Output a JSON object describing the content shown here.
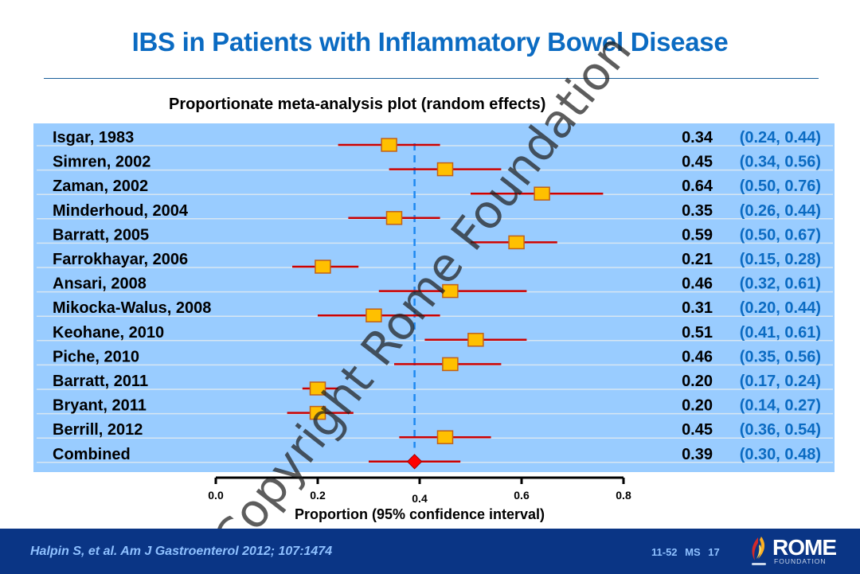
{
  "slide": {
    "title": "IBS in Patients with Inflammatory Bowel Disease",
    "watermark": "Copyright Rome Foundation",
    "footer": {
      "citation": "Halpin S, et al. Am J Gastroenterol 2012; 107:1474",
      "slide_code": "11-52 MS 17",
      "logo_name": "ROME",
      "logo_sub": "FOUNDATION"
    }
  },
  "chart_data": {
    "type": "forest",
    "title": "Proportionate meta-analysis plot (random effects)",
    "xlabel": "Proportion (95% confidence interval)",
    "xlim": [
      0.0,
      0.8
    ],
    "xticks": [
      "0.0",
      "0.2",
      "0.4",
      "0.6",
      "0.8"
    ],
    "xtick_values": [
      0.0,
      0.2,
      0.4,
      0.6,
      0.8
    ],
    "reference_line": 0.39,
    "studies": [
      {
        "label": "Isgar, 1983",
        "estimate": 0.34,
        "lower": 0.24,
        "upper": 0.44,
        "estimate_text": "0.34",
        "ci_text": "(0.24, 0.44)"
      },
      {
        "label": "Simren, 2002",
        "estimate": 0.45,
        "lower": 0.34,
        "upper": 0.56,
        "estimate_text": "0.45",
        "ci_text": "(0.34, 0.56)"
      },
      {
        "label": "Zaman, 2002",
        "estimate": 0.64,
        "lower": 0.5,
        "upper": 0.76,
        "estimate_text": "0.64",
        "ci_text": "(0.50, 0.76)"
      },
      {
        "label": "Minderhoud, 2004",
        "estimate": 0.35,
        "lower": 0.26,
        "upper": 0.44,
        "estimate_text": "0.35",
        "ci_text": "(0.26, 0.44)"
      },
      {
        "label": "Barratt, 2005",
        "estimate": 0.59,
        "lower": 0.5,
        "upper": 0.67,
        "estimate_text": "0.59",
        "ci_text": "(0.50, 0.67)"
      },
      {
        "label": "Farrokhayar, 2006",
        "estimate": 0.21,
        "lower": 0.15,
        "upper": 0.28,
        "estimate_text": "0.21",
        "ci_text": "(0.15, 0.28)"
      },
      {
        "label": "Ansari, 2008",
        "estimate": 0.46,
        "lower": 0.32,
        "upper": 0.61,
        "estimate_text": "0.46",
        "ci_text": "(0.32, 0.61)"
      },
      {
        "label": "Mikocka-Walus, 2008",
        "estimate": 0.31,
        "lower": 0.2,
        "upper": 0.44,
        "estimate_text": "0.31",
        "ci_text": "(0.20, 0.44)"
      },
      {
        "label": "Keohane, 2010",
        "estimate": 0.51,
        "lower": 0.41,
        "upper": 0.61,
        "estimate_text": "0.51",
        "ci_text": "(0.41, 0.61)"
      },
      {
        "label": "Piche, 2010",
        "estimate": 0.46,
        "lower": 0.35,
        "upper": 0.56,
        "estimate_text": "0.46",
        "ci_text": "(0.35, 0.56)"
      },
      {
        "label": "Barratt, 2011",
        "estimate": 0.2,
        "lower": 0.17,
        "upper": 0.24,
        "estimate_text": "0.20",
        "ci_text": "(0.17, 0.24)"
      },
      {
        "label": "Bryant, 2011",
        "estimate": 0.2,
        "lower": 0.14,
        "upper": 0.27,
        "estimate_text": "0.20",
        "ci_text": "(0.14, 0.27)"
      },
      {
        "label": "Berrill, 2012",
        "estimate": 0.45,
        "lower": 0.36,
        "upper": 0.54,
        "estimate_text": "0.45",
        "ci_text": "(0.36, 0.54)"
      }
    ],
    "combined": {
      "label": "Combined",
      "estimate": 0.39,
      "lower": 0.3,
      "upper": 0.48,
      "estimate_text": "0.39",
      "ci_text": "(0.30, 0.48)"
    },
    "colors": {
      "panel": "#99ccff",
      "ci_line": "#cc0000",
      "marker_fill": "#ffc000",
      "marker_stroke": "#c0601a",
      "diamond": "#ff0000",
      "reference_line": "#1e88f0",
      "ci_text": "#0b6bc2"
    }
  }
}
